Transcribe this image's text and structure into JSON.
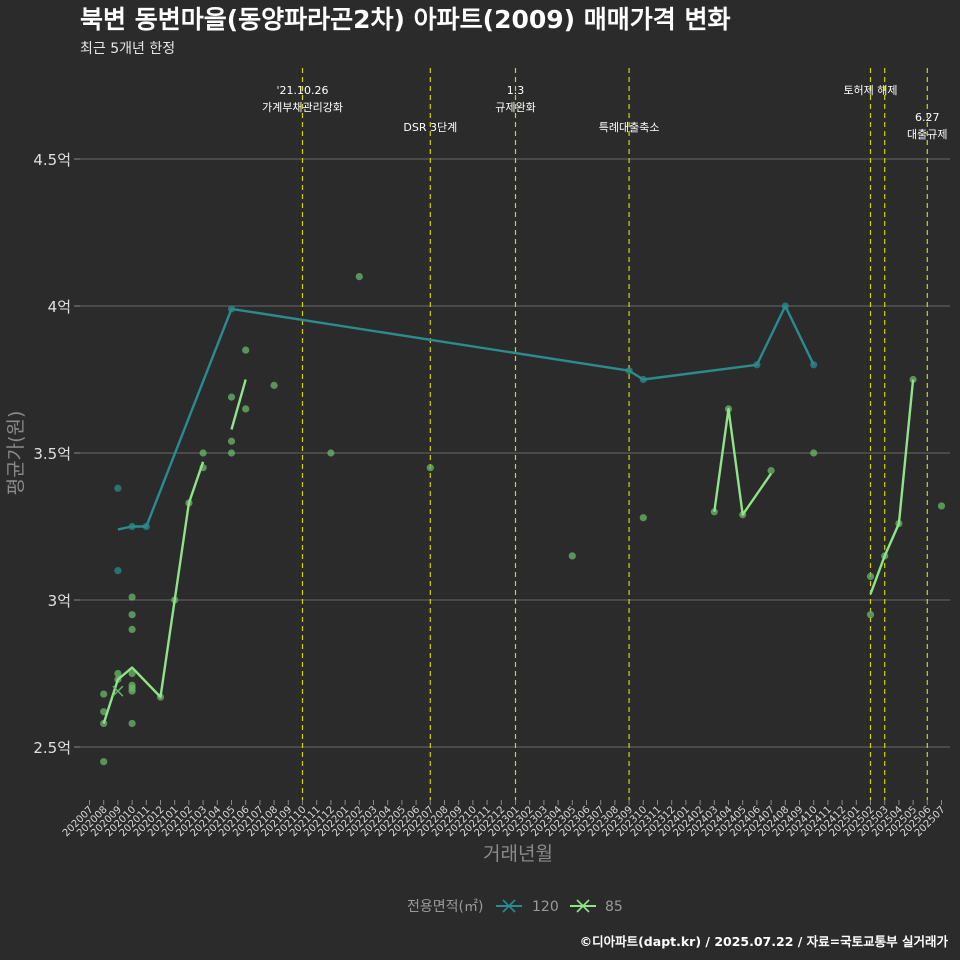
{
  "chart_data": {
    "type": "line",
    "title": "북변 동변마을(동양파라곤2차) 아파트(2009) 매매가격 변화",
    "subtitle": "최근 5개년 한정",
    "xlabel": "거래년월",
    "ylabel": "평균가(원)",
    "caption": "©디아파트(dapt.kr) / 2025.07.22 / 자료=국토교통부 실거래가",
    "categories": [
      "202007",
      "202008",
      "202009",
      "202010",
      "202011",
      "202012",
      "202101",
      "202102",
      "202103",
      "202104",
      "202105",
      "202106",
      "202107",
      "202108",
      "202109",
      "202110",
      "202111",
      "202112",
      "202201",
      "202202",
      "202203",
      "202204",
      "202205",
      "202206",
      "202207",
      "202208",
      "202209",
      "202210",
      "202211",
      "202212",
      "202301",
      "202302",
      "202303",
      "202304",
      "202305",
      "202306",
      "202307",
      "202308",
      "202309",
      "202310",
      "202311",
      "202312",
      "202401",
      "202402",
      "202403",
      "202404",
      "202405",
      "202406",
      "202407",
      "202408",
      "202409",
      "202410",
      "202411",
      "202412",
      "202501",
      "202502",
      "202503",
      "202504",
      "202505",
      "202506",
      "202507"
    ],
    "ylim": [
      2.35,
      4.8
    ],
    "yticks": [
      2.5,
      3.0,
      3.5,
      4.0,
      4.5
    ],
    "ytick_labels": [
      "2.5억",
      "3억",
      "3.5억",
      "4억",
      "4.5억"
    ],
    "grid": "horizontal",
    "legend": {
      "title": "전용면적(㎡)",
      "position": "bottom",
      "items": [
        {
          "label": "120",
          "color": "#2a8c8c"
        },
        {
          "label": "85",
          "color": "#8fe388"
        }
      ]
    },
    "series": [
      {
        "name": "120",
        "color": "#2a8c8c",
        "line": [
          [
            "202009",
            3.24
          ],
          [
            "202010",
            3.25
          ],
          [
            "202011",
            3.25
          ],
          [
            "202105",
            3.99
          ],
          [
            "202309",
            3.78
          ],
          [
            "202310",
            3.75
          ],
          [
            "202406",
            3.8
          ],
          [
            "202408",
            4.0
          ],
          [
            "202410",
            3.8
          ]
        ],
        "points": [
          [
            "202009",
            3.38
          ],
          [
            "202009",
            3.1
          ],
          [
            "202010",
            3.25
          ],
          [
            "202011",
            3.25
          ],
          [
            "202105",
            3.99
          ],
          [
            "202309",
            3.78
          ],
          [
            "202310",
            3.75
          ],
          [
            "202406",
            3.8
          ],
          [
            "202408",
            4.0
          ],
          [
            "202410",
            3.8
          ]
        ]
      },
      {
        "name": "85",
        "color": "#8fe388",
        "line_segments": [
          [
            [
              "202008",
              2.58
            ],
            [
              "202009",
              2.73
            ],
            [
              "202010",
              2.77
            ],
            [
              "202012",
              2.67
            ],
            [
              "202101",
              3.0
            ],
            [
              "202102",
              3.33
            ],
            [
              "202103",
              3.47
            ]
          ],
          [
            [
              "202105",
              3.58
            ],
            [
              "202106",
              3.75
            ]
          ],
          [
            [
              "202403",
              3.3
            ],
            [
              "202404",
              3.65
            ],
            [
              "202405",
              3.29
            ],
            [
              "202407",
              3.43
            ]
          ],
          [
            [
              "202502",
              3.02
            ],
            [
              "202503",
              3.15
            ],
            [
              "202504",
              3.26
            ],
            [
              "202505",
              3.75
            ]
          ]
        ],
        "points": [
          [
            "202008",
            2.45
          ],
          [
            "202008",
            2.58
          ],
          [
            "202008",
            2.62
          ],
          [
            "202008",
            2.68
          ],
          [
            "202009",
            2.73
          ],
          [
            "202009",
            2.75
          ],
          [
            "202010",
            2.58
          ],
          [
            "202010",
            2.69
          ],
          [
            "202010",
            2.7
          ],
          [
            "202010",
            2.71
          ],
          [
            "202010",
            2.75
          ],
          [
            "202010",
            2.9
          ],
          [
            "202010",
            2.95
          ],
          [
            "202010",
            3.01
          ],
          [
            "202012",
            2.67
          ],
          [
            "202101",
            3.0
          ],
          [
            "202102",
            3.33
          ],
          [
            "202103",
            3.45
          ],
          [
            "202103",
            3.5
          ],
          [
            "202105",
            3.5
          ],
          [
            "202105",
            3.54
          ],
          [
            "202105",
            3.69
          ],
          [
            "202106",
            3.65
          ],
          [
            "202106",
            3.85
          ],
          [
            "202108",
            3.73
          ],
          [
            "202112",
            3.5
          ],
          [
            "202202",
            4.1
          ],
          [
            "202207",
            3.45
          ],
          [
            "202305",
            3.15
          ],
          [
            "202310",
            3.28
          ],
          [
            "202403",
            3.3
          ],
          [
            "202404",
            3.65
          ],
          [
            "202405",
            3.29
          ],
          [
            "202407",
            3.44
          ],
          [
            "202410",
            3.5
          ],
          [
            "202502",
            2.95
          ],
          [
            "202502",
            3.08
          ],
          [
            "202503",
            3.15
          ],
          [
            "202504",
            3.26
          ],
          [
            "202505",
            3.75
          ],
          [
            "202507",
            3.32
          ]
        ],
        "outlier_cross": [
          "202009",
          2.69
        ]
      }
    ],
    "events": [
      {
        "month": "202110",
        "lines": [
          "'21.10.26",
          "가계부채관리강화"
        ],
        "level": 1
      },
      {
        "month": "202207",
        "lines": [
          "DSR 3단계"
        ],
        "level": 2
      },
      {
        "month": "202301",
        "lines": [
          "1.3",
          "규제완화"
        ],
        "level": 1
      },
      {
        "month": "202309",
        "lines": [
          "특례대출축소"
        ],
        "level": 2
      },
      {
        "month": "202502",
        "lines": [
          "토허제 해제"
        ],
        "level": 1
      },
      {
        "month": "202503",
        "lines": [],
        "level": 1
      },
      {
        "month": "202506",
        "lines": [
          "6.27",
          "대출규제"
        ],
        "level": 3
      }
    ]
  }
}
